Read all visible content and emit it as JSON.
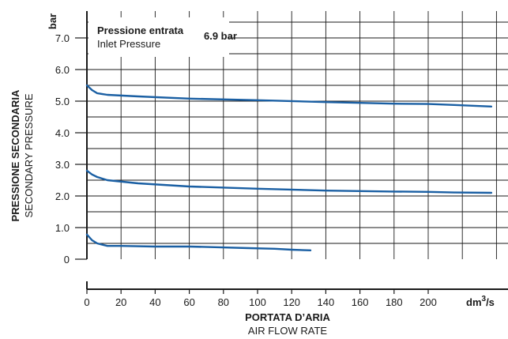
{
  "chart_data": {
    "type": "line",
    "y_unit": "bar",
    "x_unit_base": "dm",
    "x_unit_sup": "3",
    "x_unit_tail": "/s",
    "ylabel_main": "PRESSIONE SECONDARIA",
    "ylabel_sub": "SECONDARY PRESSURE",
    "xlabel_main": "PORTATA D’ARIA",
    "xlabel_sub": "AIR FLOW RATE",
    "ylim": [
      0,
      7.0
    ],
    "xlim": [
      0,
      240
    ],
    "y_ticks": [
      "0",
      "1.0",
      "2.0",
      "3.0",
      "4.0",
      "5.0",
      "6.0",
      "7.0"
    ],
    "x_ticks": [
      "0",
      "20",
      "40",
      "60",
      "80",
      "100",
      "120",
      "140",
      "160",
      "180",
      "200"
    ],
    "grid": true,
    "annotation": {
      "title": "Pressione entrata",
      "subtitle": "Inlet Pressure",
      "value": "6.9 bar"
    },
    "color": "#1a5fa3",
    "series": [
      {
        "points": [
          [
            0,
            5.5
          ],
          [
            3,
            5.35
          ],
          [
            6,
            5.25
          ],
          [
            12,
            5.2
          ],
          [
            30,
            5.15
          ],
          [
            60,
            5.08
          ],
          [
            100,
            5.03
          ],
          [
            140,
            4.97
          ],
          [
            180,
            4.92
          ],
          [
            200,
            4.91
          ],
          [
            215,
            4.88
          ],
          [
            237,
            4.83
          ]
        ]
      },
      {
        "points": [
          [
            0,
            2.8
          ],
          [
            3,
            2.68
          ],
          [
            6,
            2.6
          ],
          [
            12,
            2.5
          ],
          [
            30,
            2.4
          ],
          [
            60,
            2.3
          ],
          [
            100,
            2.23
          ],
          [
            140,
            2.17
          ],
          [
            180,
            2.14
          ],
          [
            200,
            2.13
          ],
          [
            215,
            2.11
          ],
          [
            237,
            2.1
          ]
        ]
      },
      {
        "points": [
          [
            0,
            0.78
          ],
          [
            3,
            0.6
          ],
          [
            6,
            0.5
          ],
          [
            12,
            0.42
          ],
          [
            20,
            0.42
          ],
          [
            40,
            0.4
          ],
          [
            60,
            0.4
          ],
          [
            75,
            0.38
          ],
          [
            95,
            0.35
          ],
          [
            110,
            0.33
          ],
          [
            120,
            0.3
          ],
          [
            131,
            0.28
          ]
        ]
      }
    ]
  }
}
